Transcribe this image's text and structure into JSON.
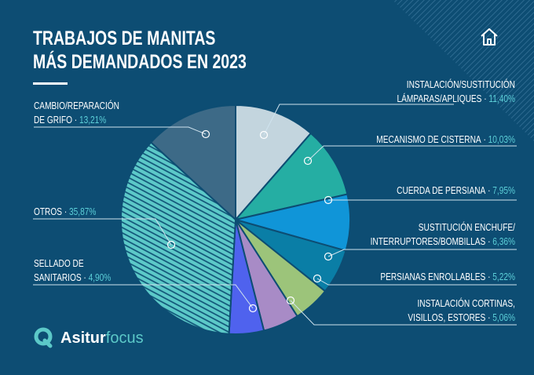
{
  "header": {
    "title_line1": "TRABAJOS DE MANITAS",
    "title_line2": "MÁS DEMANDADOS EN 2023",
    "home_icon": "home-icon"
  },
  "brand": {
    "part1": "Asitur",
    "part2": "focus"
  },
  "colors": {
    "background": "#0d4d73",
    "percent_text": "#5ccfd8"
  },
  "chart_data": {
    "type": "pie",
    "title": "TRABAJOS DE MANITAS MÁS DEMANDADOS EN 2023",
    "start": "top, clockwise",
    "slices": [
      {
        "label1": "INSTALACIÓN/SUSTITUCIÓN",
        "label2": "LÁMPARAS/APLIQUES",
        "value": 11.4,
        "value_label": "11,40%",
        "color": "#c3d5de"
      },
      {
        "label1": "",
        "label2": "MECANISMO DE CISTERNA",
        "value": 10.03,
        "value_label": "10,03%",
        "color": "#25aea3"
      },
      {
        "label1": "",
        "label2": "CUERDA DE PERSIANA",
        "value": 7.95,
        "value_label": "7,95%",
        "color": "#1095d8"
      },
      {
        "label1": "SUSTITUCIÓN ENCHUFE/",
        "label2": "INTERRUPTORES/BOMBILLAS",
        "value": 6.36,
        "value_label": "6,36%",
        "color": "#0a7ea6"
      },
      {
        "label1": "",
        "label2": "PERSIANAS ENROLLABLES",
        "value": 5.22,
        "value_label": "5,22%",
        "color": "#9cc47a"
      },
      {
        "label1": "INSTALACIÓN CORTINAS,",
        "label2": "VISILLOS, ESTORES",
        "value": 5.06,
        "value_label": "5,06%",
        "color": "#a88bc6"
      },
      {
        "label1": "SELLADO DE",
        "label2": "SANITARIOS",
        "value": 4.9,
        "value_label": "4,90%",
        "color": "#4f62ee"
      },
      {
        "label1": "",
        "label2": "OTROS",
        "value": 35.87,
        "value_label": "35,87%",
        "color": "#5cc9c8",
        "hatched": true
      },
      {
        "label1": "CAMBIO/REPARACIÓN",
        "label2": "DE GRIFO",
        "value": 13.21,
        "value_label": "13,21%",
        "color": "#3d6a87"
      }
    ]
  }
}
